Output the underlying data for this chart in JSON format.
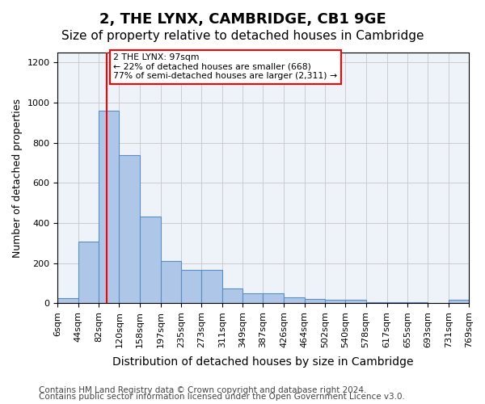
{
  "title1": "2, THE LYNX, CAMBRIDGE, CB1 9GE",
  "title2": "Size of property relative to detached houses in Cambridge",
  "xlabel": "Distribution of detached houses by size in Cambridge",
  "ylabel": "Number of detached properties",
  "bin_edges": [
    6,
    44,
    82,
    120,
    158,
    197,
    235,
    273,
    311,
    349,
    387,
    426,
    464,
    502,
    540,
    578,
    617,
    655,
    693,
    731,
    769
  ],
  "bar_heights": [
    25,
    305,
    960,
    740,
    430,
    210,
    165,
    165,
    75,
    50,
    50,
    30,
    20,
    15,
    15,
    5,
    5,
    5,
    0,
    15
  ],
  "bar_color": "#aec6e8",
  "bar_edge_color": "#5a8fc2",
  "property_size": 97,
  "annotation_text": "2 THE LYNX: 97sqm\n← 22% of detached houses are smaller (668)\n77% of semi-detached houses are larger (2,311) →",
  "annotation_box_color": "white",
  "annotation_box_edge_color": "red",
  "vline_color": "red",
  "ylim": [
    0,
    1250
  ],
  "yticks": [
    0,
    200,
    400,
    600,
    800,
    1000,
    1200
  ],
  "grid_color": "#cccccc",
  "bg_color": "#eef2f9",
  "footer_line1": "Contains HM Land Registry data © Crown copyright and database right 2024.",
  "footer_line2": "Contains public sector information licensed under the Open Government Licence v3.0.",
  "title1_fontsize": 13,
  "title2_fontsize": 11,
  "xlabel_fontsize": 10,
  "ylabel_fontsize": 9,
  "tick_fontsize": 8,
  "footer_fontsize": 7.5
}
